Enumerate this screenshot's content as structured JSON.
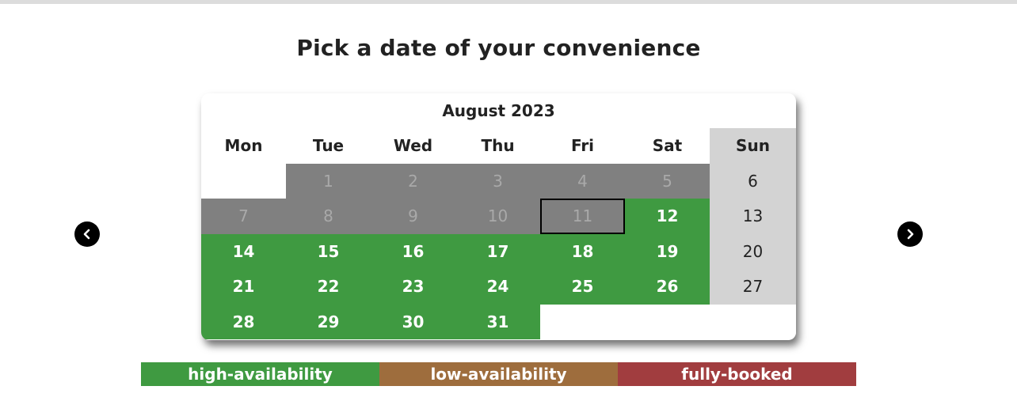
{
  "page": {
    "title": "Pick a date of your convenience"
  },
  "navigation": {
    "prev_icon": "chevron-left-icon",
    "next_icon": "chevron-right-icon"
  },
  "calendar": {
    "month_label": "August 2023",
    "weekdays": [
      "Mon",
      "Tue",
      "Wed",
      "Thu",
      "Fri",
      "Sat",
      "Sun"
    ],
    "weeks": [
      [
        {
          "label": "",
          "status": "empty"
        },
        {
          "label": "1",
          "status": "past"
        },
        {
          "label": "2",
          "status": "past"
        },
        {
          "label": "3",
          "status": "past"
        },
        {
          "label": "4",
          "status": "past"
        },
        {
          "label": "5",
          "status": "past"
        },
        {
          "label": "6",
          "status": "weekend"
        }
      ],
      [
        {
          "label": "7",
          "status": "past"
        },
        {
          "label": "8",
          "status": "past"
        },
        {
          "label": "9",
          "status": "past"
        },
        {
          "label": "10",
          "status": "past"
        },
        {
          "label": "11",
          "status": "past",
          "today": true
        },
        {
          "label": "12",
          "status": "high"
        },
        {
          "label": "13",
          "status": "weekend"
        }
      ],
      [
        {
          "label": "14",
          "status": "high"
        },
        {
          "label": "15",
          "status": "high"
        },
        {
          "label": "16",
          "status": "high"
        },
        {
          "label": "17",
          "status": "high"
        },
        {
          "label": "18",
          "status": "high"
        },
        {
          "label": "19",
          "status": "high"
        },
        {
          "label": "20",
          "status": "weekend"
        }
      ],
      [
        {
          "label": "21",
          "status": "high"
        },
        {
          "label": "22",
          "status": "high"
        },
        {
          "label": "23",
          "status": "high"
        },
        {
          "label": "24",
          "status": "high"
        },
        {
          "label": "25",
          "status": "high"
        },
        {
          "label": "26",
          "status": "high"
        },
        {
          "label": "27",
          "status": "weekend"
        }
      ],
      [
        {
          "label": "28",
          "status": "high"
        },
        {
          "label": "29",
          "status": "high"
        },
        {
          "label": "30",
          "status": "high"
        },
        {
          "label": "31",
          "status": "high"
        },
        {
          "label": "",
          "status": "empty"
        },
        {
          "label": "",
          "status": "empty"
        },
        {
          "label": "",
          "status": "empty"
        }
      ]
    ]
  },
  "legend": {
    "items": [
      {
        "label": "high-availability",
        "color": "#3f9a41"
      },
      {
        "label": "low-availability",
        "color": "#9e6d3d"
      },
      {
        "label": "fully-booked",
        "color": "#a13d3f"
      }
    ]
  },
  "colors": {
    "high": "#3f9a41",
    "past": "#808080",
    "past_text": "#a9a9a9",
    "weekend": "#d3d3d3"
  }
}
